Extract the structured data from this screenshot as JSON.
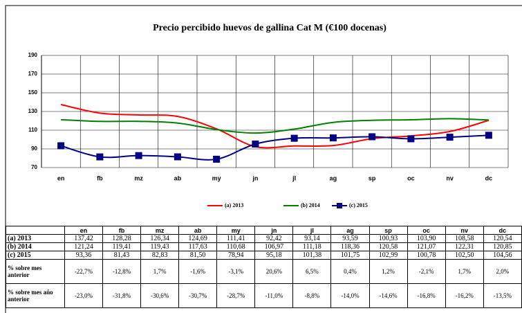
{
  "chart_data": {
    "type": "line",
    "title": "Precio percibido huevos de gallina Cat M (€100 docenas)",
    "categories": [
      "en",
      "fb",
      "mz",
      "ab",
      "my",
      "jn",
      "jl",
      "ag",
      "sp",
      "oc",
      "nv",
      "dc"
    ],
    "ylim": [
      70,
      190
    ],
    "yticks": [
      70,
      90,
      110,
      130,
      150,
      170,
      190
    ],
    "grid": true,
    "legend": "bottom",
    "series": [
      {
        "name": "(a) 2013",
        "color": "#ff0000",
        "marker": false,
        "values": [
          137.42,
          128.28,
          126.34,
          124.69,
          111.41,
          92.42,
          93.14,
          93.59,
          100.93,
          103.9,
          108.58,
          120.54
        ],
        "value_labels": [
          "137,42",
          "128,28",
          "126,34",
          "124,69",
          "111,41",
          "92,42",
          "93,14",
          "93,59",
          "100,93",
          "103,90",
          "108,58",
          "120,54"
        ]
      },
      {
        "name": "(b) 2014",
        "color": "#008000",
        "marker": false,
        "values": [
          121.24,
          119.41,
          119.43,
          117.63,
          110.68,
          106.97,
          111.18,
          118.36,
          120.58,
          121.07,
          122.31,
          120.85
        ],
        "value_labels": [
          "121,24",
          "119,41",
          "119,43",
          "117,63",
          "110,68",
          "106,97",
          "111,18",
          "118,36",
          "120,58",
          "121,07",
          "122,31",
          "120,85"
        ]
      },
      {
        "name": "(c) 2015",
        "color": "#000080",
        "marker": true,
        "values": [
          93.36,
          81.43,
          82.83,
          81.5,
          78.94,
          95.18,
          101.38,
          101.75,
          102.99,
          100.78,
          102.5,
          104.56
        ],
        "value_labels": [
          "93,36",
          "81,43",
          "82,83",
          "81,50",
          "78,94",
          "95,18",
          "101,38",
          "101,75",
          "102,99",
          "100,78",
          "102,50",
          "104,56"
        ]
      }
    ]
  },
  "table": {
    "rows": [
      {
        "label": "% sobre mes anterior",
        "cells": [
          "-22,7%",
          "-12,8%",
          "1,7%",
          "-1,6%",
          "-3,1%",
          "20,6%",
          "6,5%",
          "0,4%",
          "1,2%",
          "-2,1%",
          "1,7%",
          "2,0%"
        ]
      },
      {
        "label": "% sobre mes año anterior",
        "cells": [
          "-23,0%",
          "-31,8%",
          "-30,6%",
          "-30,7%",
          "-28,7%",
          "-11,0%",
          "-8,8%",
          "-14,0%",
          "-14,6%",
          "-16,8%",
          "-16,2%",
          "-13,5%"
        ]
      }
    ]
  }
}
